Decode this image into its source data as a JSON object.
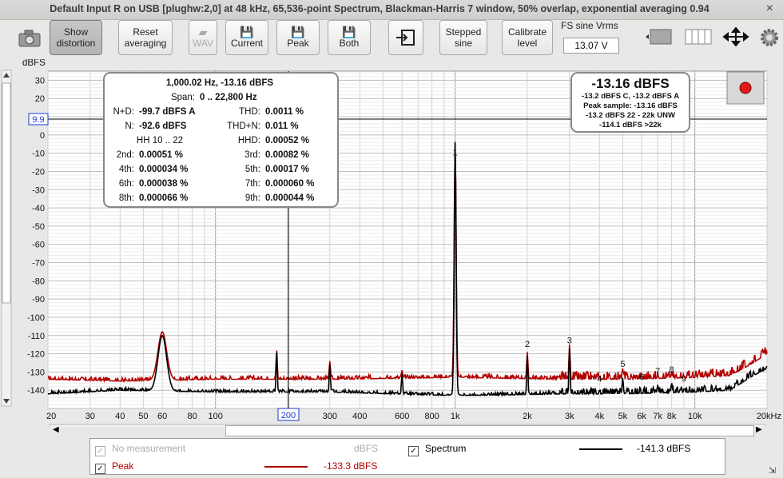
{
  "window": {
    "title": "Default Input R on USB [plughw:2,0] at 48 kHz, 65,536-point Spectrum, Blackman-Harris 7 window, 50% overlap, exponential averaging 0.94",
    "close": "×"
  },
  "toolbar": {
    "camera": "camera-icon",
    "show_distortion": "Show distortion",
    "reset": "Reset averaging",
    "wav": "WAV",
    "current": "Current",
    "peak": "Peak",
    "both": "Both",
    "stepped": "Stepped sine",
    "calibrate": "Calibrate level",
    "fs_label": "FS sine Vrms",
    "fs_value": "13.07 V"
  },
  "colors": {
    "peak": "#b30000",
    "spectrum": "#000000",
    "grid": "#cfcfcf"
  },
  "axis": {
    "ylabel": "dBFS",
    "xunit": "kHz",
    "y_cursor": "9.9",
    "x_cursor": "200"
  },
  "readout": {
    "headline": "1,000.02 Hz, -13.16 dBFS",
    "span_label": "Span:",
    "span": "0 .. 22,800 Hz",
    "rows": [
      [
        "N+D:",
        "-99.7 dBFS A",
        "THD:",
        "0.0011 %"
      ],
      [
        "N:",
        "-92.6 dBFS",
        "THD+N:",
        "0.011 %"
      ],
      [
        "HH 10 .. 22",
        "",
        "HHD:",
        "0.00052 %"
      ],
      [
        "2nd:",
        "0.00051 %",
        "3rd:",
        "0.00082 %"
      ],
      [
        "4th:",
        "0.000034 %",
        "5th:",
        "0.00017 %"
      ],
      [
        "6th:",
        "0.000038 %",
        "7th:",
        "0.000060 %"
      ],
      [
        "8th:",
        "0.000066 %",
        "9th:",
        "0.000044 %"
      ]
    ]
  },
  "level": {
    "big": "-13.16 dBFS",
    "lines": [
      "-13.2 dBFS C, -13.2 dBFS A",
      "Peak sample: -13.16 dBFS",
      "-13.2 dBFS 22 - 22k UNW",
      "-114.1 dBFS >22k"
    ]
  },
  "legend": {
    "no_measurement": "No measurement",
    "no_meas_unit": "dBFS",
    "spectrum": "Spectrum",
    "spectrum_value": "-141.3 dBFS",
    "peak": "Peak",
    "peak_value": "-133.3 dBFS"
  },
  "chart_data": {
    "type": "line",
    "xscale": "log",
    "xlim": [
      20,
      20000
    ],
    "ylim": [
      -150,
      40
    ],
    "ylabel": "dBFS",
    "yticks": [
      30,
      20,
      10,
      0,
      -10,
      -20,
      -30,
      -40,
      -50,
      -60,
      -70,
      -80,
      -90,
      -100,
      -110,
      -120,
      -130,
      -140
    ],
    "xticks": [
      [
        20,
        "20"
      ],
      [
        30,
        "30"
      ],
      [
        40,
        "40"
      ],
      [
        50,
        "50"
      ],
      [
        60,
        "60"
      ],
      [
        80,
        "80"
      ],
      [
        100,
        "100"
      ],
      [
        200,
        "200"
      ],
      [
        300,
        "300"
      ],
      [
        400,
        "400"
      ],
      [
        600,
        "600"
      ],
      [
        800,
        "800"
      ],
      [
        1000,
        "1k"
      ],
      [
        2000,
        "2k"
      ],
      [
        3000,
        "3k"
      ],
      [
        4000,
        "4k"
      ],
      [
        5000,
        "5k"
      ],
      [
        6000,
        "6k"
      ],
      [
        7000,
        "7k"
      ],
      [
        8000,
        "8k"
      ],
      [
        10000,
        "10k"
      ],
      [
        20000,
        "20kHz"
      ]
    ],
    "harmonics": [
      [
        1000,
        -13,
        "1"
      ],
      [
        2000,
        -118,
        "2"
      ],
      [
        3000,
        -116,
        "3"
      ],
      [
        4000,
        -137,
        "4"
      ],
      [
        5000,
        -129,
        "5"
      ],
      [
        6000,
        -136,
        "6"
      ],
      [
        7000,
        -133,
        "7"
      ],
      [
        8000,
        -132,
        "8"
      ],
      [
        9000,
        -137,
        "9"
      ]
    ],
    "series": [
      {
        "name": "Peak",
        "floor": [
          [
            20,
            -134
          ],
          [
            40,
            -135
          ],
          [
            100,
            -134
          ],
          [
            300,
            -134
          ],
          [
            1000,
            -133
          ],
          [
            3000,
            -134
          ],
          [
            5000,
            -134
          ],
          [
            10000,
            -133
          ],
          [
            14000,
            -132
          ],
          [
            17000,
            -126
          ],
          [
            20000,
            -120
          ]
        ],
        "peaks": [
          [
            60,
            -108
          ],
          [
            180,
            -118
          ],
          [
            300,
            -124
          ],
          [
            600,
            -129
          ],
          [
            1000,
            -13
          ],
          [
            2000,
            -119
          ],
          [
            3000,
            -115
          ],
          [
            5000,
            -128
          ],
          [
            7000,
            -132
          ],
          [
            8000,
            -131
          ]
        ]
      },
      {
        "name": "Spectrum",
        "floor": [
          [
            20,
            -142
          ],
          [
            40,
            -140
          ],
          [
            100,
            -141
          ],
          [
            300,
            -141
          ],
          [
            1000,
            -143
          ],
          [
            3000,
            -142
          ],
          [
            5000,
            -142
          ],
          [
            10000,
            -141
          ],
          [
            14000,
            -140
          ],
          [
            17000,
            -133
          ],
          [
            20000,
            -128
          ]
        ],
        "peaks": [
          [
            60,
            -110
          ],
          [
            180,
            -119
          ],
          [
            300,
            -126
          ],
          [
            600,
            -131
          ],
          [
            1000,
            -14
          ],
          [
            2000,
            -121
          ],
          [
            3000,
            -117
          ],
          [
            5000,
            -133
          ],
          [
            7000,
            -137
          ],
          [
            8000,
            -136
          ]
        ]
      }
    ]
  }
}
